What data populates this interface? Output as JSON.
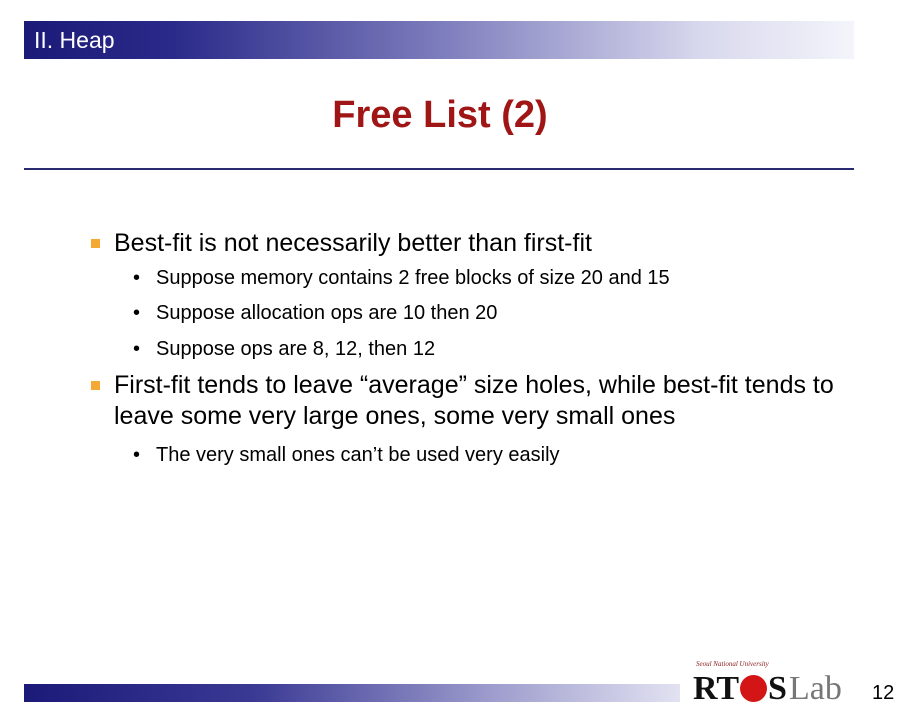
{
  "section": {
    "label": "II. Heap"
  },
  "title": "Free List (2)",
  "bullets": [
    {
      "text": "Best-fit is not necessarily better than first-fit",
      "sub": [
        "Suppose memory contains 2 free blocks of size 20 and 15",
        "Suppose allocation ops are 10 then 20",
        "Suppose ops are 8, 12, then 12"
      ]
    },
    {
      "text": "First-fit tends to leave “average” size holes, while best-fit tends to leave some very large ones, some very small ones",
      "sub": [
        "The very small ones can’t be used very easily"
      ]
    }
  ],
  "footer": {
    "logo_subtitle": "Seoul National University",
    "logo_rt": "RT",
    "logo_s": "S",
    "logo_lab": "Lab",
    "page_number": "12"
  },
  "colors": {
    "title": "#a01616",
    "header_bar": "#1c1a78",
    "bullet_marker": "#f4a935",
    "logo_dot": "#d31515"
  }
}
